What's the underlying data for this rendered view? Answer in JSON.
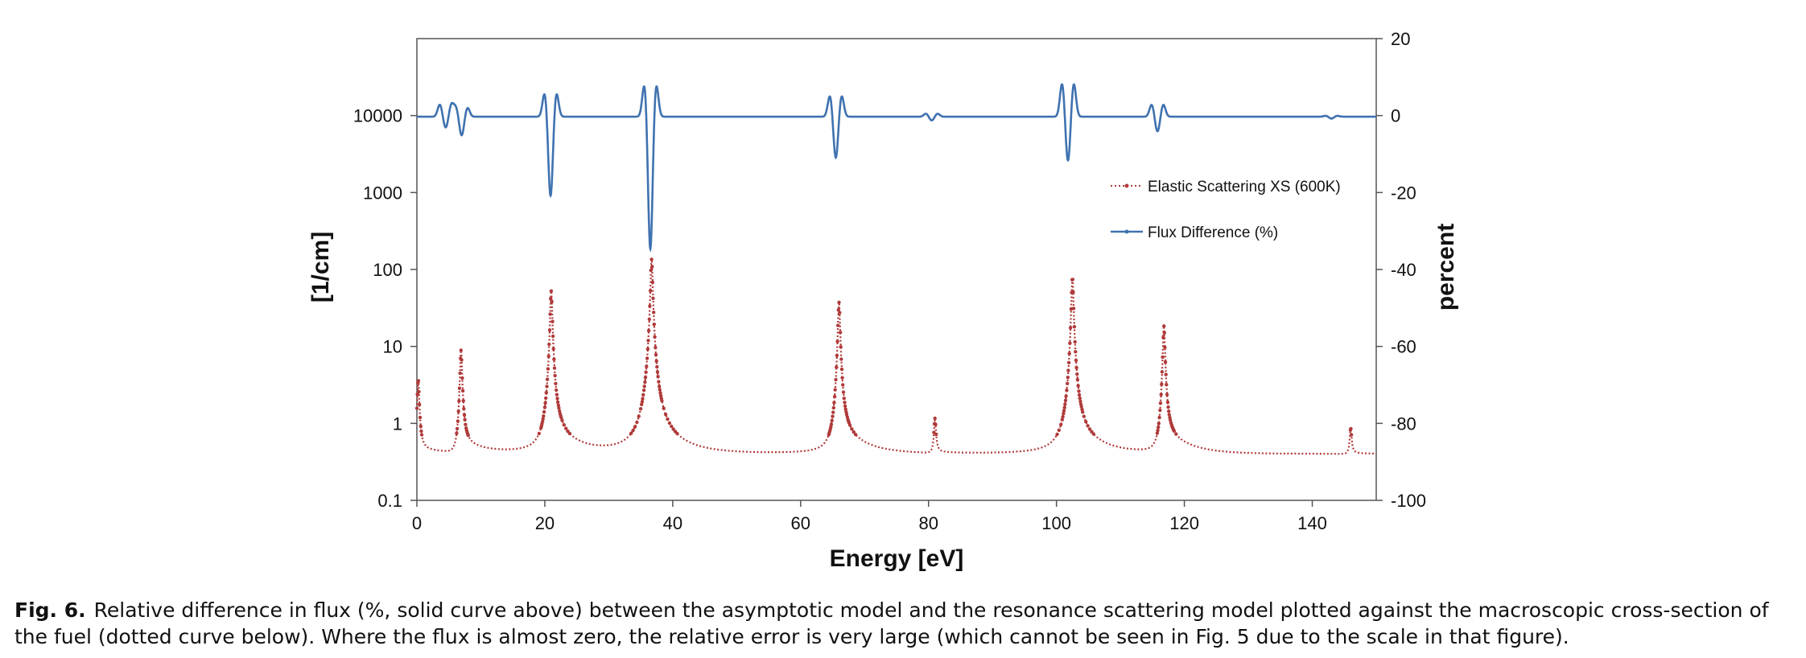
{
  "chart_data": {
    "type": "line",
    "xlabel": "Energy [eV]",
    "ylabel_left": "[1/cm]",
    "ylabel_right": "percent",
    "xlim": [
      0,
      150
    ],
    "xticks": [
      0,
      20,
      40,
      60,
      80,
      100,
      120,
      140
    ],
    "ylim_left": [
      0.1,
      100000
    ],
    "yscale_left": "log",
    "yticks_left": [
      "0.1",
      "1",
      "10",
      "100",
      "1000",
      "10000"
    ],
    "ylim_right": [
      -100,
      20
    ],
    "yticks_right": [
      20,
      0,
      -20,
      -40,
      -60,
      -80,
      -100
    ],
    "grid": false,
    "legend_position": "right-middle",
    "series": [
      {
        "name": "Elastic Scattering XS (600K)",
        "axis": "left",
        "style": "dotted",
        "color": "#b03a3a",
        "background": 0.4,
        "resonances": [
          {
            "energy": 0.2,
            "peak": 3.3
          },
          {
            "energy": 6.9,
            "peak": 8.5
          },
          {
            "energy": 21.0,
            "peak": 52
          },
          {
            "energy": 36.7,
            "peak": 135
          },
          {
            "energy": 66.0,
            "peak": 37
          },
          {
            "energy": 81.0,
            "peak": 0.75
          },
          {
            "energy": 102.5,
            "peak": 78
          },
          {
            "energy": 116.8,
            "peak": 18
          },
          {
            "energy": 146.0,
            "peak": 0.47
          }
        ]
      },
      {
        "name": "Flux Difference (%)",
        "axis": "right",
        "style": "solid",
        "color": "#3f72b0",
        "baseline": -0.3,
        "features": [
          {
            "energy": 4.5,
            "min": -3,
            "max": 4
          },
          {
            "energy": 7.0,
            "min": -5,
            "max": 3
          },
          {
            "energy": 20.9,
            "min": -21,
            "max": 8
          },
          {
            "energy": 36.5,
            "min": -35,
            "max": 11
          },
          {
            "energy": 65.5,
            "min": -11,
            "max": 7
          },
          {
            "energy": 80.5,
            "min": -1,
            "max": 1
          },
          {
            "energy": 101.8,
            "min": -12,
            "max": 11
          },
          {
            "energy": 115.8,
            "min": -4,
            "max": 4
          },
          {
            "energy": 143.0,
            "min": -0.5,
            "max": 0.3
          }
        ]
      }
    ]
  },
  "caption": {
    "label": "Fig. 6.",
    "text": "Relative difference in flux (%, solid curve above) between the asymptotic model and the resonance scattering model plotted against the macroscopic cross-section of the fuel (dotted curve below). Where the flux is almost zero, the relative error is very large (which cannot be seen in Fig. 5 due to the scale in that figure)."
  }
}
